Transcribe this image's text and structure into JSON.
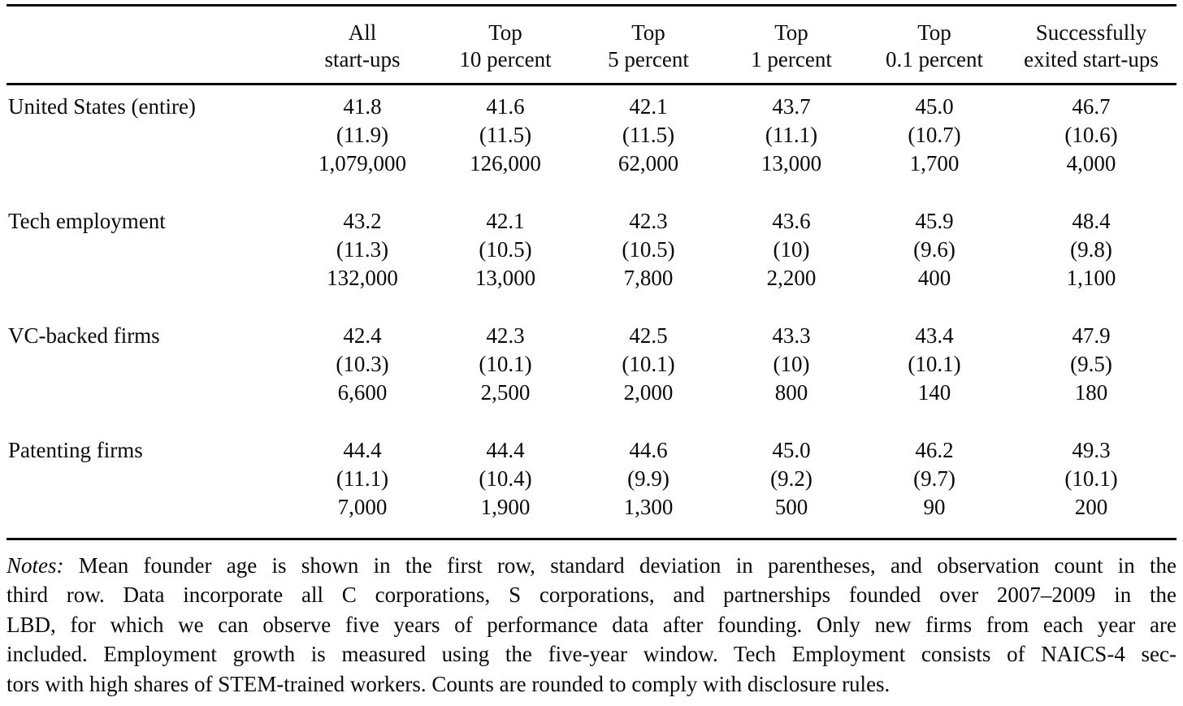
{
  "table": {
    "columns": [
      {
        "line1": "All",
        "line2": "start-ups"
      },
      {
        "line1": "Top",
        "line2": "10 percent"
      },
      {
        "line1": "Top",
        "line2": "5 percent"
      },
      {
        "line1": "Top",
        "line2": "1 percent"
      },
      {
        "line1": "Top",
        "line2": "0.1 percent"
      },
      {
        "line1": "Successfully",
        "line2": "exited start-ups"
      }
    ],
    "rows": [
      {
        "label": "United States (entire)",
        "mean": [
          "41.8",
          "41.6",
          "42.1",
          "43.7",
          "45.0",
          "46.7"
        ],
        "sd": [
          "(11.9)",
          "(11.5)",
          "(11.5)",
          "(11.1)",
          "(10.7)",
          "(10.6)"
        ],
        "count": [
          "1,079,000",
          "126,000",
          "62,000",
          "13,000",
          "1,700",
          "4,000"
        ]
      },
      {
        "label": "Tech employment",
        "mean": [
          "43.2",
          "42.1",
          "42.3",
          "43.6",
          "45.9",
          "48.4"
        ],
        "sd": [
          "(11.3)",
          "(10.5)",
          "(10.5)",
          "(10)",
          "(9.6)",
          "(9.8)"
        ],
        "count": [
          "132,000",
          "13,000",
          "7,800",
          "2,200",
          "400",
          "1,100"
        ]
      },
      {
        "label": "VC-backed firms",
        "mean": [
          "42.4",
          "42.3",
          "42.5",
          "43.3",
          "43.4",
          "47.9"
        ],
        "sd": [
          "(10.3)",
          "(10.1)",
          "(10.1)",
          "(10)",
          "(10.1)",
          "(9.5)"
        ],
        "count": [
          "6,600",
          "2,500",
          "2,000",
          "800",
          "140",
          "180"
        ]
      },
      {
        "label": "Patenting firms",
        "mean": [
          "44.4",
          "44.4",
          "44.6",
          "45.0",
          "46.2",
          "49.3"
        ],
        "sd": [
          "(11.1)",
          "(10.4)",
          "(9.9)",
          "(9.2)",
          "(9.7)",
          "(10.1)"
        ],
        "count": [
          "7,000",
          "1,900",
          "1,300",
          "500",
          "90",
          "200"
        ]
      }
    ]
  },
  "notes": {
    "label": "Notes:",
    "lines": [
      "Mean founder age is shown in the first row, standard deviation in parentheses, and observation count in the",
      "third row. Data incorporate all C corporations, S corporations, and partnerships founded over 2007–2009 in the",
      "LBD, for which we can observe five years of performance data after founding. Only new firms from each year are",
      "included. Employment growth is measured using the five-year window. Tech Employment consists of NAICS-4 sec-",
      "tors with high shares of STEM-trained workers. Counts are rounded to comply with disclosure rules."
    ]
  },
  "colors": {
    "text": "#0a0a0a",
    "background": "#ffffff",
    "rule": "#0a0a0a"
  }
}
